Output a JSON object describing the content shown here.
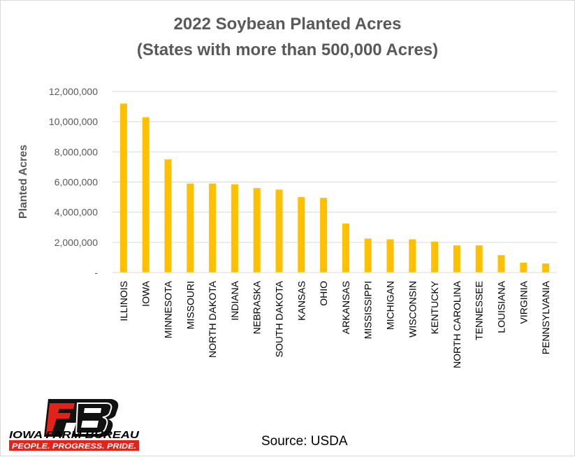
{
  "chart_data": {
    "type": "bar",
    "title": "2022 Soybean Planted Acres",
    "subtitle": "(States with more than 500,000 Acres)",
    "xlabel": "",
    "ylabel": "Planted Acres",
    "ylim": [
      0,
      12000000
    ],
    "yticks": [
      "-",
      "2,000,000",
      "4,000,000",
      "6,000,000",
      "8,000,000",
      "10,000,000",
      "12,000,000"
    ],
    "grid": true,
    "bar_color": "#FFC000",
    "categories": [
      "ILLINOIS",
      "IOWA",
      "MINNESOTA",
      "MISSOURI",
      "NORTH DAKOTA",
      "INDIANA",
      "NEBRASKA",
      "SOUTH DAKOTA",
      "KANSAS",
      "OHIO",
      "ARKANSAS",
      "MISSISSIPPI",
      "MICHIGAN",
      "WISCONSIN",
      "KENTUCKY",
      "NORTH CAROLINA",
      "TENNESSEE",
      "LOUISIANA",
      "VIRGINIA",
      "PENNSYLVANIA"
    ],
    "values": [
      11200000,
      10300000,
      7500000,
      5900000,
      5900000,
      5850000,
      5600000,
      5500000,
      5000000,
      4950000,
      3250000,
      2250000,
      2200000,
      2200000,
      2050000,
      1800000,
      1800000,
      1150000,
      650000,
      600000
    ]
  },
  "logo": {
    "name": "IOWA FARM BUREAU",
    "tagline": "PEOPLE. PROGRESS. PRIDE.",
    "brand_color": "#E2231A"
  },
  "source": "Source: USDA"
}
